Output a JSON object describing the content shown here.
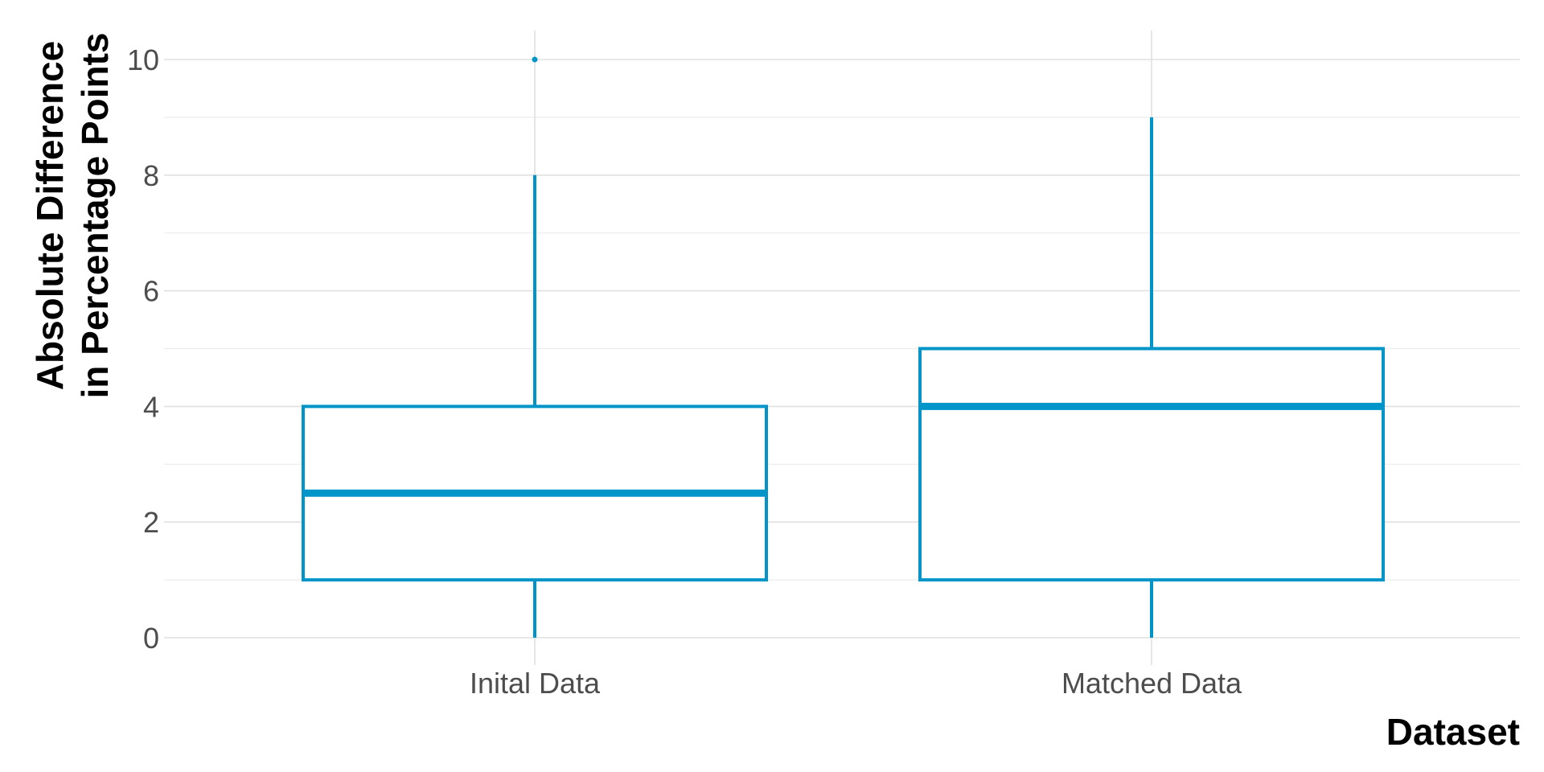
{
  "chart_data": {
    "type": "boxplot",
    "xlabel": "Dataset",
    "ylabel_lines": [
      "Absolute Difference",
      "in Percentage Points"
    ],
    "categories": [
      "Inital Data",
      "Matched Data"
    ],
    "ylim": [
      -0.5,
      10.5
    ],
    "y_ticks": [
      0,
      2,
      4,
      6,
      8,
      10
    ],
    "y_minor_ticks": [
      1,
      3,
      5,
      7,
      9
    ],
    "grid": true,
    "color": "#0095c8",
    "boxes": [
      {
        "category": "Inital Data",
        "whisker_low": 0,
        "q1": 1,
        "median": 2.5,
        "q3": 4,
        "whisker_high": 8,
        "outliers": [
          10
        ]
      },
      {
        "category": "Matched Data",
        "whisker_low": 0,
        "q1": 1,
        "median": 4,
        "q3": 5,
        "whisker_high": 9,
        "outliers": []
      }
    ]
  }
}
